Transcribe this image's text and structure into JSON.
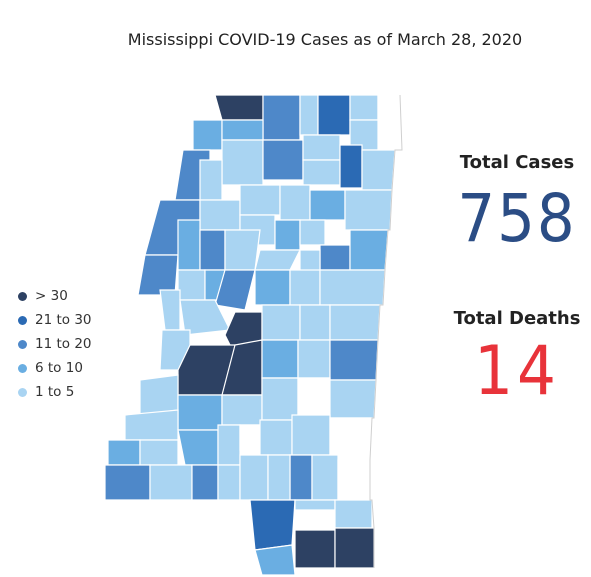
{
  "title": "Mississippi COVID-19 Cases as of March 28, 2020",
  "colors": {
    "gt30": "#2d4163",
    "21to30": "#2b6ab4",
    "11to20": "#4e88c9",
    "6to10": "#6aaee2",
    "1to5": "#a9d4f2",
    "zero": "#ffffff",
    "border": "#ffffff"
  },
  "legend": [
    {
      "label": "> 30",
      "color": "#2d4163"
    },
    {
      "label": "21 to 30",
      "color": "#2b6ab4"
    },
    {
      "label": "11 to 20",
      "color": "#4e88c9"
    },
    {
      "label": "6 to 10",
      "color": "#6aaee2"
    },
    {
      "label": "1 to 5",
      "color": "#a9d4f2"
    }
  ],
  "stats": {
    "total_cases_label": "Total Cases",
    "total_cases": "758",
    "total_deaths_label": "Total Deaths",
    "total_deaths": "14"
  },
  "map_data": {
    "level_note": "county shading by case bucket",
    "counties_by_bucket": {
      "gt30": [
        "DeSoto",
        "Hinds",
        "Madison",
        "Rankin",
        "Jackson",
        "Harrison"
      ],
      "21to30": [
        "Marshall",
        "Lee",
        "Pearl River",
        "Lamar"
      ],
      "11to20": [
        "Tate",
        "Coahoma",
        "Bolivar",
        "Leflore",
        "Holmes",
        "Washington",
        "Pike",
        "Lauderdale",
        "Lowndes",
        "Hancock",
        "Forrest",
        "Neshoba"
      ],
      "6to10": [
        "Tunica",
        "Panola",
        "Sunflower",
        "Humphreys",
        "Monroe",
        "Copiah",
        "Lincoln",
        "Yazoo",
        "Adams",
        "Smith",
        "Stone"
      ]
    }
  }
}
